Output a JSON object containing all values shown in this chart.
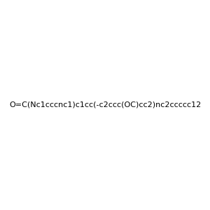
{
  "smiles": "O=C(Nc1cccnc1)c1cc(-c2ccc(OC)cc2)nc2ccccc12",
  "image_size": 300,
  "background_color": "#f0f0f0",
  "title": "",
  "dpi": 100
}
